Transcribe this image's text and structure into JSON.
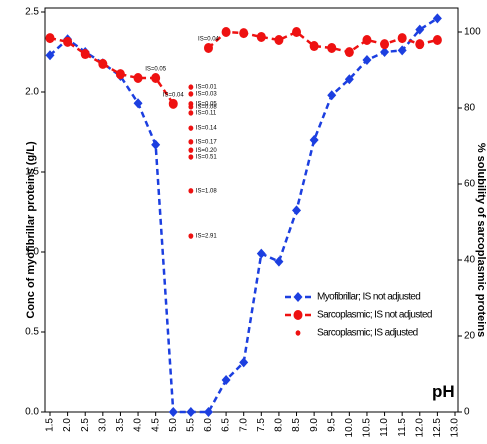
{
  "chart_data": {
    "type": "line",
    "y_label": "Conc of myofibrillar proteins (g/L)",
    "y2_label": "% solubility of sarcoplasmic proteins",
    "x_label": "pH",
    "x": [
      1.5,
      2.0,
      2.5,
      3.0,
      3.5,
      4.0,
      4.5,
      5.0,
      5.5,
      6.0,
      6.5,
      7.0,
      7.5,
      8.0,
      8.5,
      9.0,
      9.5,
      10.0,
      10.5,
      11.0,
      11.5,
      12.0,
      12.5
    ],
    "xlim": [
      1.5,
      13.0
    ],
    "xticks": [
      {
        "value": 1.5,
        "label": "1.5"
      },
      {
        "value": 2,
        "label": "2.0"
      },
      {
        "value": 2.5,
        "label": "2.5"
      },
      {
        "value": 3,
        "label": "3.0"
      },
      {
        "value": 3.5,
        "label": "3.5"
      },
      {
        "value": 4,
        "label": "4.0"
      },
      {
        "value": 4.5,
        "label": "4.5"
      },
      {
        "value": 5,
        "label": "5.0"
      },
      {
        "value": 5.5,
        "label": "5.5"
      },
      {
        "value": 6,
        "label": "6.0"
      },
      {
        "value": 6.5,
        "label": "6.5"
      },
      {
        "value": 7,
        "label": "7.0"
      },
      {
        "value": 7.5,
        "label": "7.5"
      },
      {
        "value": 8,
        "label": "8.0"
      },
      {
        "value": 8.5,
        "label": "8.5"
      },
      {
        "value": 9,
        "label": "9.0"
      },
      {
        "value": 9.5,
        "label": "9.5"
      },
      {
        "value": 10,
        "label": "10.0"
      },
      {
        "value": 10.5,
        "label": "10.5"
      },
      {
        "value": 11,
        "label": "11.0"
      },
      {
        "value": 11.5,
        "label": "11.5"
      },
      {
        "value": 12,
        "label": "12.0"
      },
      {
        "value": 12.5,
        "label": "12.5"
      },
      {
        "value": 13,
        "label": "13.0"
      }
    ],
    "ylim": [
      0,
      2.5
    ],
    "yticks": [
      {
        "value": 0,
        "label": "0.0"
      },
      0.5,
      {
        "value": 1,
        "label": "1.0"
      },
      1.5,
      {
        "value": 2,
        "label": "2.0"
      },
      2.5
    ],
    "y2lim": [
      0,
      105
    ],
    "y2ticks": [
      0,
      20,
      40,
      60,
      80,
      100
    ],
    "legend": "lower center",
    "series": [
      {
        "name": "Myofibrillar; IS not adjusted",
        "color": "#1c3fe0",
        "marker": "diamond",
        "line": true,
        "values": [
          2.23,
          2.33,
          2.25,
          2.18,
          2.1,
          1.93,
          1.67,
          0,
          0,
          0,
          0.2,
          0.31,
          0.99,
          0.94,
          1.26,
          1.7,
          1.98,
          2.08,
          2.2,
          2.25,
          2.26,
          2.39,
          2.46
        ]
      },
      {
        "name": "Sarcoplasmic; IS not adjusted",
        "color": "#ee1111",
        "marker": "circle",
        "line": true,
        "axis": "y2",
        "values": [
          98.4,
          97.4,
          94.2,
          91.6,
          88.9,
          87.9,
          87.9,
          81.1,
          null,
          95.8,
          100,
          99.7,
          98.7,
          97.9,
          100,
          96.3,
          95.8,
          94.7,
          97.9,
          96.8,
          98.4,
          96.8,
          97.9
        ],
        "point_labels": [
          null,
          null,
          null,
          null,
          null,
          null,
          "IS=0.05",
          "IS=0.04",
          null,
          "IS=0.04",
          null,
          null,
          null,
          null,
          null,
          null,
          null,
          null,
          null,
          null,
          null,
          null,
          null
        ]
      },
      {
        "name": "Sarcoplasmic; IS adjusted",
        "color": "#ee1111",
        "marker": "dot",
        "line": false,
        "axis": "y2",
        "x": [
          5.5,
          5.5,
          5.5,
          5.5,
          5.5,
          5.5,
          5.5,
          5.5,
          5.5,
          5.5,
          5.5
        ],
        "values": [
          85.5,
          83.7,
          81.1,
          80.3,
          78.7,
          74.7,
          71.1,
          68.9,
          67.1,
          58.2,
          46.3
        ],
        "point_labels": [
          "IS=0.01",
          "IS=0.03",
          "IS=0.05",
          "IS=0.08",
          "IS=0.11",
          "IS=0.14",
          "IS=0.17",
          "IS=0.20",
          "IS=0.51",
          "IS=1.08",
          "IS=2.91"
        ]
      }
    ]
  }
}
